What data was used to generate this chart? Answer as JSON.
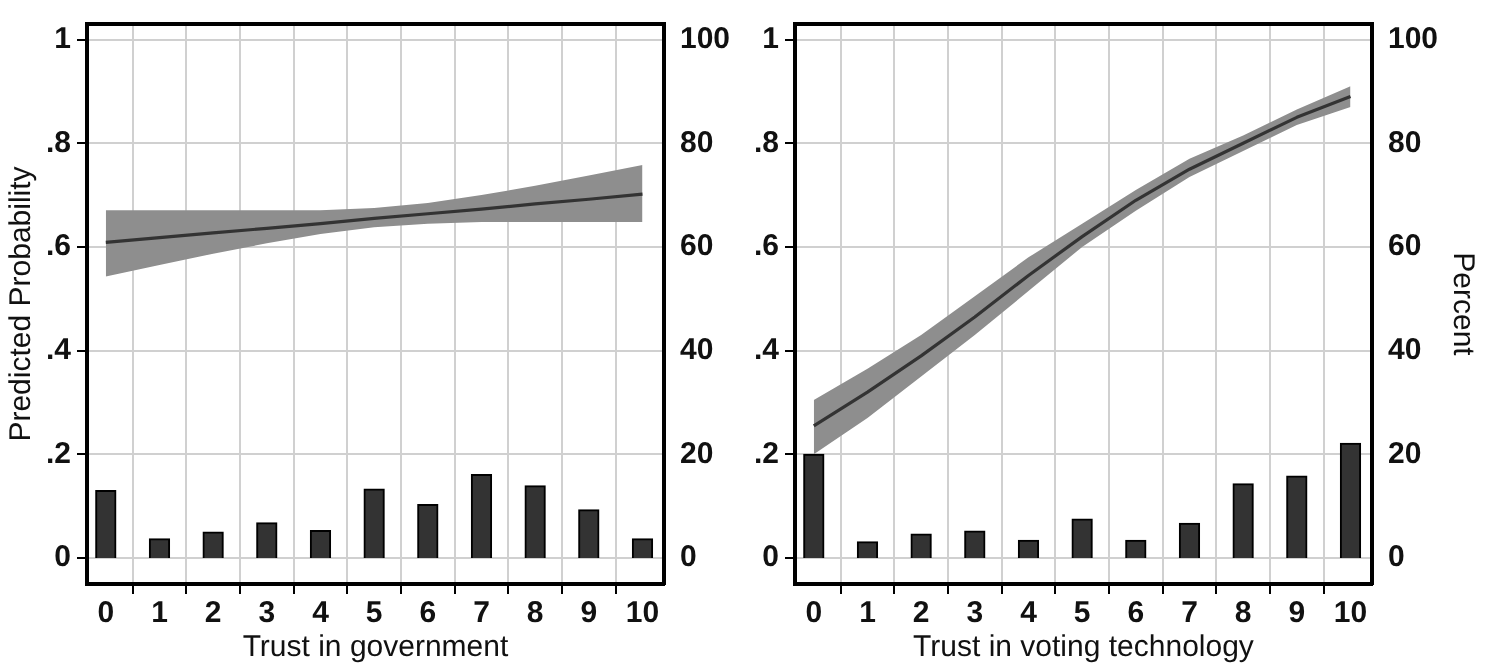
{
  "chart_data": [
    {
      "type": "line",
      "xlabel": "Trust in government",
      "ylabel": "Predicted Probability",
      "x": [
        0,
        1,
        2,
        3,
        4,
        5,
        6,
        7,
        8,
        9,
        10
      ],
      "xlim": [
        -0.35,
        10.4
      ],
      "xticks": [
        0,
        1,
        2,
        3,
        4,
        5,
        6,
        7,
        8,
        9,
        10
      ],
      "ylim": [
        -0.05,
        1.03
      ],
      "yticks": [
        {
          "value": 0,
          "label": "0"
        },
        {
          "value": 0.2,
          "label": ".2"
        },
        {
          "value": 0.4,
          "label": ".4"
        },
        {
          "value": 0.6,
          "label": ".6"
        },
        {
          "value": 0.8,
          "label": ".8"
        },
        1
      ],
      "y2lim": [
        -5,
        103
      ],
      "y2ticks": [
        {
          "value": 0,
          "label": "0"
        },
        20,
        40,
        60,
        80,
        100
      ],
      "grid": true,
      "legend": false,
      "marker": "none",
      "line_style": "solid",
      "series": [
        {
          "type": "bar",
          "axis": "y2",
          "color": "#333333",
          "values": [
            13.0,
            3.7,
            5.0,
            6.8,
            5.3,
            13.3,
            10.3,
            16.1,
            13.9,
            9.3,
            3.7
          ]
        },
        {
          "type": "line",
          "color": "#333333",
          "values": [
            0.609,
            0.618,
            0.627,
            0.636,
            0.645,
            0.655,
            0.664,
            0.673,
            0.683,
            0.692,
            0.702
          ],
          "lower": [
            0.543,
            0.565,
            0.587,
            0.607,
            0.625,
            0.638,
            0.645,
            0.648,
            0.648,
            0.648,
            0.648
          ],
          "upper": [
            0.671,
            0.671,
            0.671,
            0.671,
            0.671,
            0.675,
            0.685,
            0.7,
            0.718,
            0.738,
            0.758
          ]
        }
      ]
    },
    {
      "type": "line",
      "xlabel": "Trust in voting technology",
      "y2label": "Percent",
      "x": [
        0,
        1,
        2,
        3,
        4,
        5,
        6,
        7,
        8,
        9,
        10
      ],
      "xlim": [
        -0.35,
        10.4
      ],
      "xticks": [
        0,
        1,
        2,
        3,
        4,
        5,
        6,
        7,
        8,
        9,
        10
      ],
      "ylim": [
        -0.05,
        1.03
      ],
      "yticks": [
        {
          "value": 0,
          "label": "0"
        },
        {
          "value": 0.2,
          "label": ".2"
        },
        {
          "value": 0.4,
          "label": ".4"
        },
        {
          "value": 0.6,
          "label": ".6"
        },
        {
          "value": 0.8,
          "label": ".8"
        },
        1
      ],
      "y2lim": [
        -5,
        103
      ],
      "y2ticks": [
        {
          "value": 0,
          "label": "0"
        },
        20,
        40,
        60,
        80,
        100
      ],
      "grid": true,
      "legend": false,
      "marker": "none",
      "line_style": "solid",
      "series": [
        {
          "type": "bar",
          "axis": "y2",
          "color": "#333333",
          "values": [
            20.0,
            3.1,
            4.6,
            5.2,
            3.4,
            7.5,
            3.4,
            6.7,
            14.3,
            15.8,
            22.1
          ]
        },
        {
          "type": "line",
          "color": "#333333",
          "values": [
            0.255,
            0.32,
            0.39,
            0.465,
            0.545,
            0.62,
            0.69,
            0.75,
            0.8,
            0.85,
            0.89
          ],
          "lower": [
            0.2,
            0.27,
            0.35,
            0.43,
            0.515,
            0.6,
            0.67,
            0.735,
            0.785,
            0.835,
            0.87
          ],
          "upper": [
            0.305,
            0.365,
            0.43,
            0.505,
            0.58,
            0.645,
            0.71,
            0.77,
            0.815,
            0.865,
            0.91
          ]
        }
      ]
    }
  ]
}
